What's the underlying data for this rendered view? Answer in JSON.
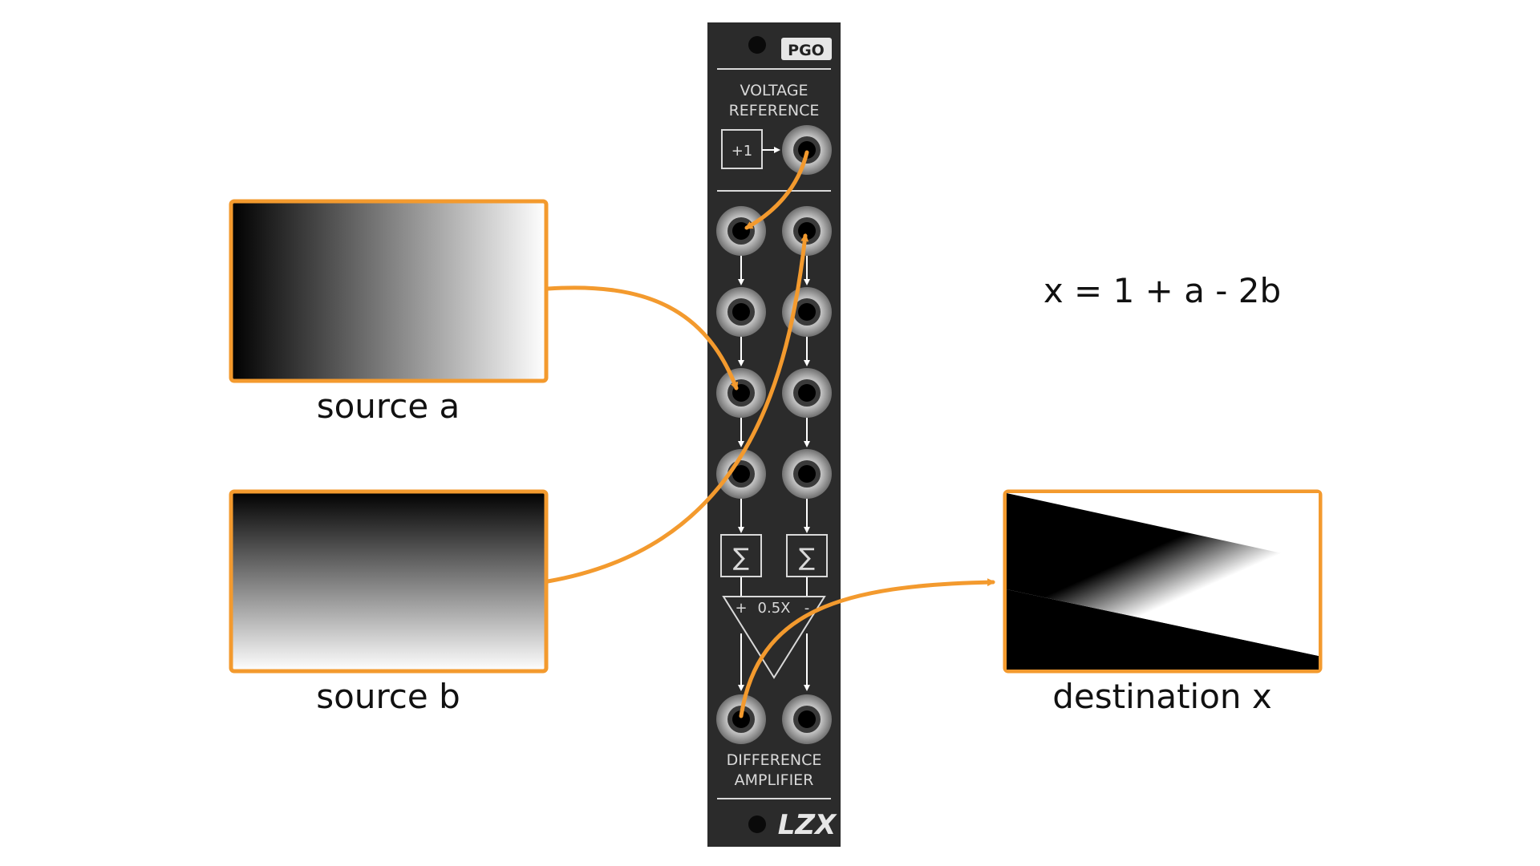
{
  "colors": {
    "panel": "#2b2b2b",
    "panel_text": "#d9d9d9",
    "accent": "#f39a2e",
    "frame": "#f39a2e"
  },
  "module": {
    "brand": "PGO",
    "voltage_reference": [
      "VOLTAGE",
      "REFERENCE"
    ],
    "constant_box": "+1",
    "sum_symbol": "∑",
    "amp_plus": "+",
    "amp_gain": "0.5X",
    "amp_minus": "-",
    "difference_amplifier": [
      "DIFFERENCE",
      "AMPLIFIER"
    ],
    "maker_logo": "LZX"
  },
  "sources": {
    "a": {
      "label": "source a",
      "gradient": "horizontal black to white"
    },
    "b": {
      "label": "source b",
      "gradient": "vertical black to white"
    }
  },
  "destination": {
    "label": "destination x",
    "gradient": "diagonal black to white"
  },
  "formula": "x = 1 + a - 2b"
}
